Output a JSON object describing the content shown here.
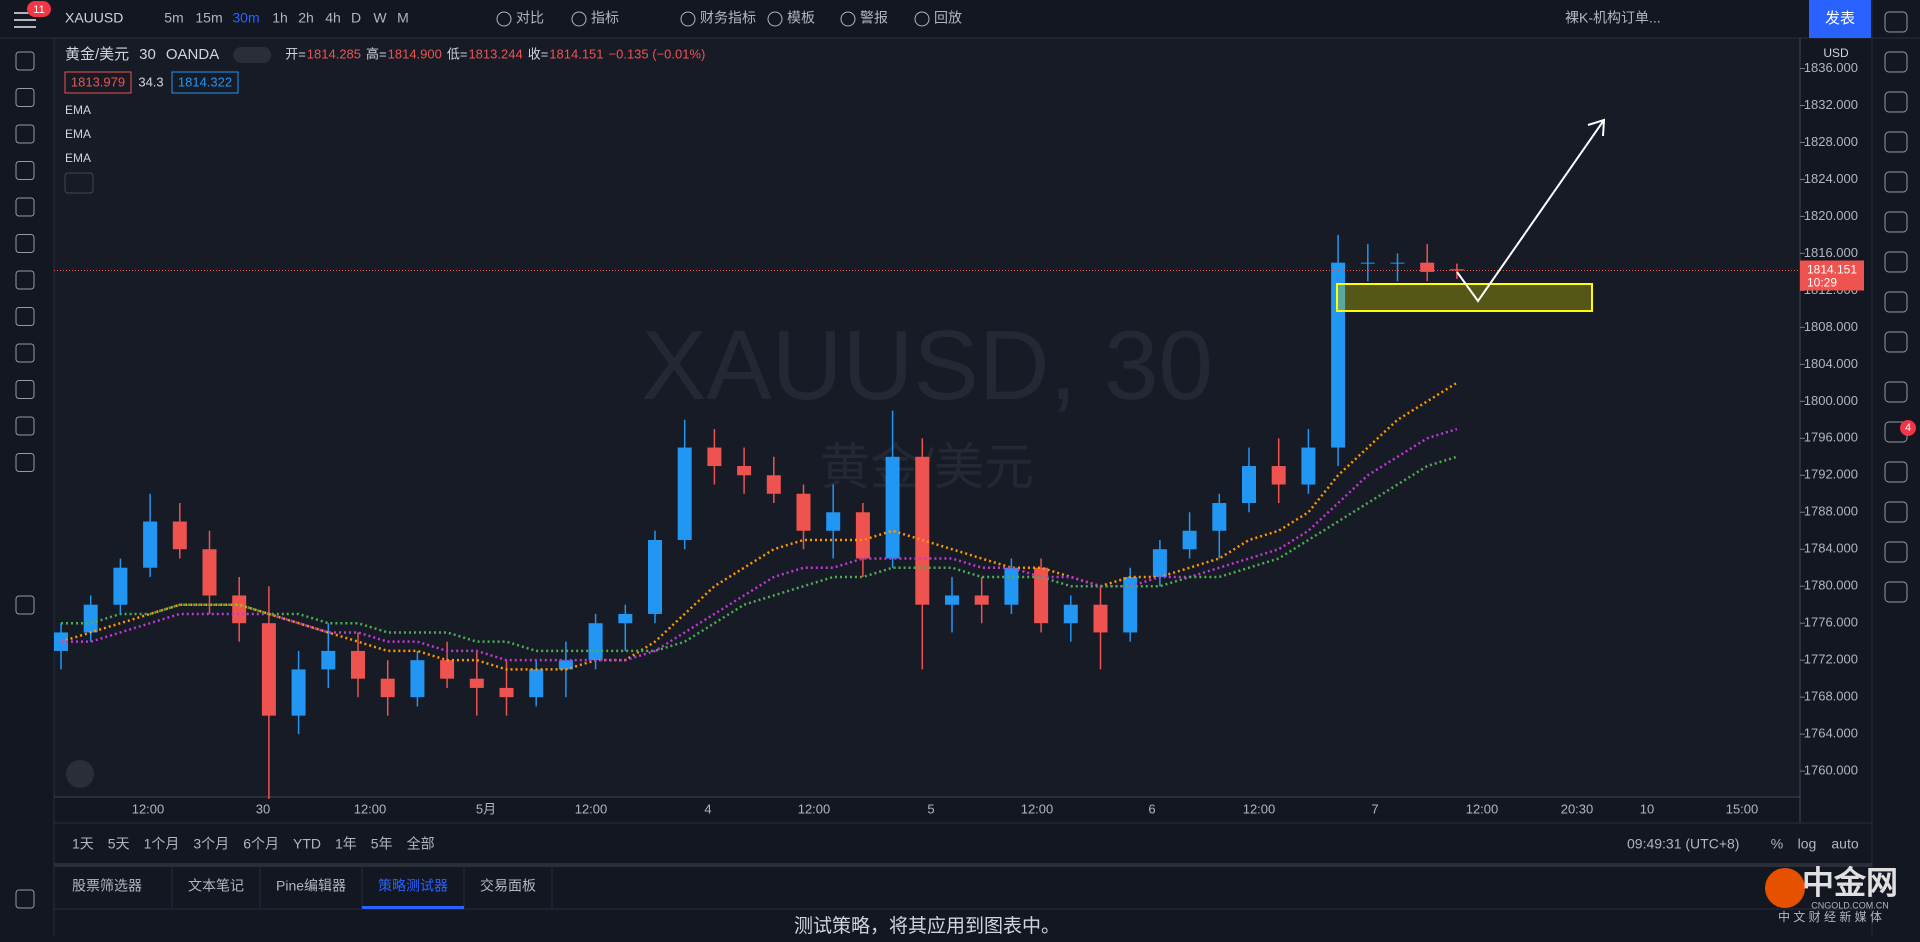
{
  "toolbar": {
    "badge": "11",
    "symbol": "XAUUSD",
    "intervals": [
      "5m",
      "15m",
      "30m",
      "1h",
      "2h",
      "4h",
      "D",
      "W",
      "M"
    ],
    "buttons": [
      "对比",
      "指标",
      "财务指标",
      "模板",
      "警报",
      "回放"
    ],
    "layout": "裸K-机构订单...",
    "publish": "发表"
  },
  "legend": {
    "name": "黄金/美元",
    "interval": "30",
    "exchange": "OANDA",
    "ohlc": [
      {
        "label": "开=",
        "value": "1814.285"
      },
      {
        "label": "高=",
        "value": "1814.900"
      },
      {
        "label": "低=",
        "value": "1813.244"
      },
      {
        "label": "收=",
        "value": "1814.151"
      }
    ],
    "change": "−0.135 (−0.01%)",
    "bid": "1813.979",
    "spread": "34.3",
    "ask": "1814.322"
  },
  "watermark": {
    "symbol": "XAUUSD, 30",
    "name": "黄金/美元"
  },
  "chart_data": {
    "type": "candlestick",
    "up_color": "#2196f3",
    "down_color": "#ef5350",
    "open": [
      1773,
      1775,
      1778,
      1782,
      1787,
      1784,
      1779,
      1776,
      1766,
      1771,
      1773,
      1770,
      1768,
      1772,
      1770,
      1769,
      1768,
      1771,
      1772,
      1776,
      1777,
      1785,
      1795,
      1793,
      1792,
      1790,
      1786,
      1788,
      1783,
      1794,
      1778,
      1779,
      1778,
      1782,
      1776,
      1778,
      1775,
      1781,
      1784,
      1786,
      1789,
      1793,
      1791,
      1795,
      1815,
      1815,
      1815,
      1814.285
    ],
    "high": [
      1776,
      1779,
      1783,
      1790,
      1789,
      1786,
      1781,
      1780,
      1773,
      1776,
      1775,
      1772,
      1773,
      1774,
      1773,
      1772,
      1772,
      1774,
      1777,
      1778,
      1786,
      1798,
      1797,
      1795,
      1794,
      1791,
      1791,
      1789,
      1799,
      1796,
      1781,
      1781,
      1783,
      1783,
      1779,
      1780,
      1782,
      1785,
      1788,
      1790,
      1795,
      1796,
      1797,
      1818,
      1817,
      1816,
      1817,
      1814.9
    ],
    "low": [
      1771,
      1774,
      1777,
      1781,
      1783,
      1777,
      1774,
      1757,
      1764,
      1769,
      1768,
      1766,
      1767,
      1769,
      1766,
      1766,
      1767,
      1768,
      1771,
      1773,
      1776,
      1784,
      1791,
      1790,
      1789,
      1784,
      1783,
      1781,
      1782,
      1771,
      1775,
      1776,
      1777,
      1775,
      1774,
      1771,
      1774,
      1780,
      1783,
      1783,
      1788,
      1789,
      1790,
      1793,
      1813,
      1813,
      1813,
      1813.244
    ],
    "close": [
      1775,
      1778,
      1782,
      1787,
      1784,
      1779,
      1776,
      1766,
      1771,
      1773,
      1770,
      1768,
      1772,
      1770,
      1769,
      1768,
      1771,
      1772,
      1776,
      1777,
      1785,
      1795,
      1793,
      1792,
      1790,
      1786,
      1788,
      1783,
      1794,
      1778,
      1779,
      1778,
      1782,
      1776,
      1778,
      1775,
      1781,
      1784,
      1786,
      1789,
      1793,
      1791,
      1795,
      1815,
      1815,
      1815,
      1814,
      1814.151
    ],
    "series": [
      {
        "name": "EMA",
        "color": "#ff9800",
        "values": [
          1774,
          1775,
          1776,
          1777,
          1778,
          1778,
          1778,
          1777,
          1776,
          1775,
          1774,
          1773,
          1773,
          1772,
          1772,
          1771,
          1771,
          1771,
          1772,
          1772,
          1774,
          1777,
          1780,
          1782,
          1784,
          1785,
          1785,
          1785,
          1786,
          1785,
          1784,
          1783,
          1782,
          1782,
          1781,
          1780,
          1781,
          1781,
          1782,
          1783,
          1785,
          1786,
          1788,
          1792,
          1795,
          1798,
          1800,
          1802
        ]
      },
      {
        "name": "EMA",
        "color": "#c038d6",
        "values": [
          1774,
          1774,
          1775,
          1776,
          1777,
          1777,
          1777,
          1777,
          1776,
          1775,
          1775,
          1774,
          1774,
          1773,
          1773,
          1772,
          1772,
          1772,
          1772,
          1772,
          1773,
          1775,
          1777,
          1779,
          1781,
          1782,
          1782,
          1783,
          1783,
          1783,
          1783,
          1782,
          1782,
          1781,
          1781,
          1780,
          1780,
          1781,
          1781,
          1782,
          1783,
          1784,
          1786,
          1789,
          1792,
          1794,
          1796,
          1797
        ]
      },
      {
        "name": "EMA",
        "color": "#4caf50",
        "values": [
          1776,
          1776,
          1777,
          1777,
          1778,
          1778,
          1778,
          1777,
          1777,
          1776,
          1776,
          1775,
          1775,
          1775,
          1774,
          1774,
          1773,
          1773,
          1773,
          1773,
          1773,
          1774,
          1776,
          1778,
          1779,
          1780,
          1781,
          1781,
          1782,
          1782,
          1782,
          1781,
          1781,
          1781,
          1780,
          1780,
          1780,
          1780,
          1781,
          1781,
          1782,
          1783,
          1785,
          1787,
          1789,
          1791,
          1793,
          1794
        ]
      }
    ],
    "ylim": [
      1757.2,
      1839.3
    ],
    "yticks": [
      {
        "value": 1760,
        "label": "1760.000"
      },
      {
        "value": 1764,
        "label": "1764.000"
      },
      {
        "value": 1768,
        "label": "1768.000"
      },
      {
        "value": 1772,
        "label": "1772.000"
      },
      {
        "value": 1776,
        "label": "1776.000"
      },
      {
        "value": 1780,
        "label": "1780.000"
      },
      {
        "value": 1784,
        "label": "1784.000"
      },
      {
        "value": 1788,
        "label": "1788.000"
      },
      {
        "value": 1792,
        "label": "1792.000"
      },
      {
        "value": 1796,
        "label": "1796.000"
      },
      {
        "value": 1800,
        "label": "1800.000"
      },
      {
        "value": 1804,
        "label": "1804.000"
      },
      {
        "value": 1808,
        "label": "1808.000"
      },
      {
        "value": 1812,
        "label": "1812.000"
      },
      {
        "value": 1816,
        "label": "1816.000"
      },
      {
        "value": 1820,
        "label": "1820.000"
      },
      {
        "value": 1824,
        "label": "1824.000"
      },
      {
        "value": 1828,
        "label": "1828.000"
      },
      {
        "value": 1832,
        "label": "1832.000"
      },
      {
        "value": 1836,
        "label": "1836.000"
      }
    ],
    "grid": false,
    "x_labels": [
      "12:00",
      "30",
      "12:00",
      "5月",
      "12:00",
      "4",
      "12:00",
      "5",
      "12:00",
      "6",
      "12:00",
      "7",
      "12:00",
      "20:30",
      "10",
      "15:00"
    ],
    "last_price": {
      "value": 1814.151,
      "label": "1814.151"
    },
    "countdown": "10:29",
    "currency": "USD"
  },
  "bottom": {
    "ranges": [
      "1天",
      "5天",
      "1个月",
      "3个月",
      "6个月",
      "YTD",
      "1年",
      "5年",
      "全部"
    ],
    "clock": "09:49:31 (UTC+8)",
    "scale": [
      "%",
      "log",
      "auto"
    ]
  },
  "tabs": [
    "股票筛选器",
    "文本笔记",
    "Pine编辑器",
    "策略测试器",
    "交易面板"
  ],
  "message": "测试策略，将其应用到图表中。",
  "sidebar": {
    "badge": "4"
  },
  "logo": {
    "name": "中金网",
    "site": "CNGOLD.COM.CN",
    "slogan": "中 文 财 经 新 媒 体"
  }
}
